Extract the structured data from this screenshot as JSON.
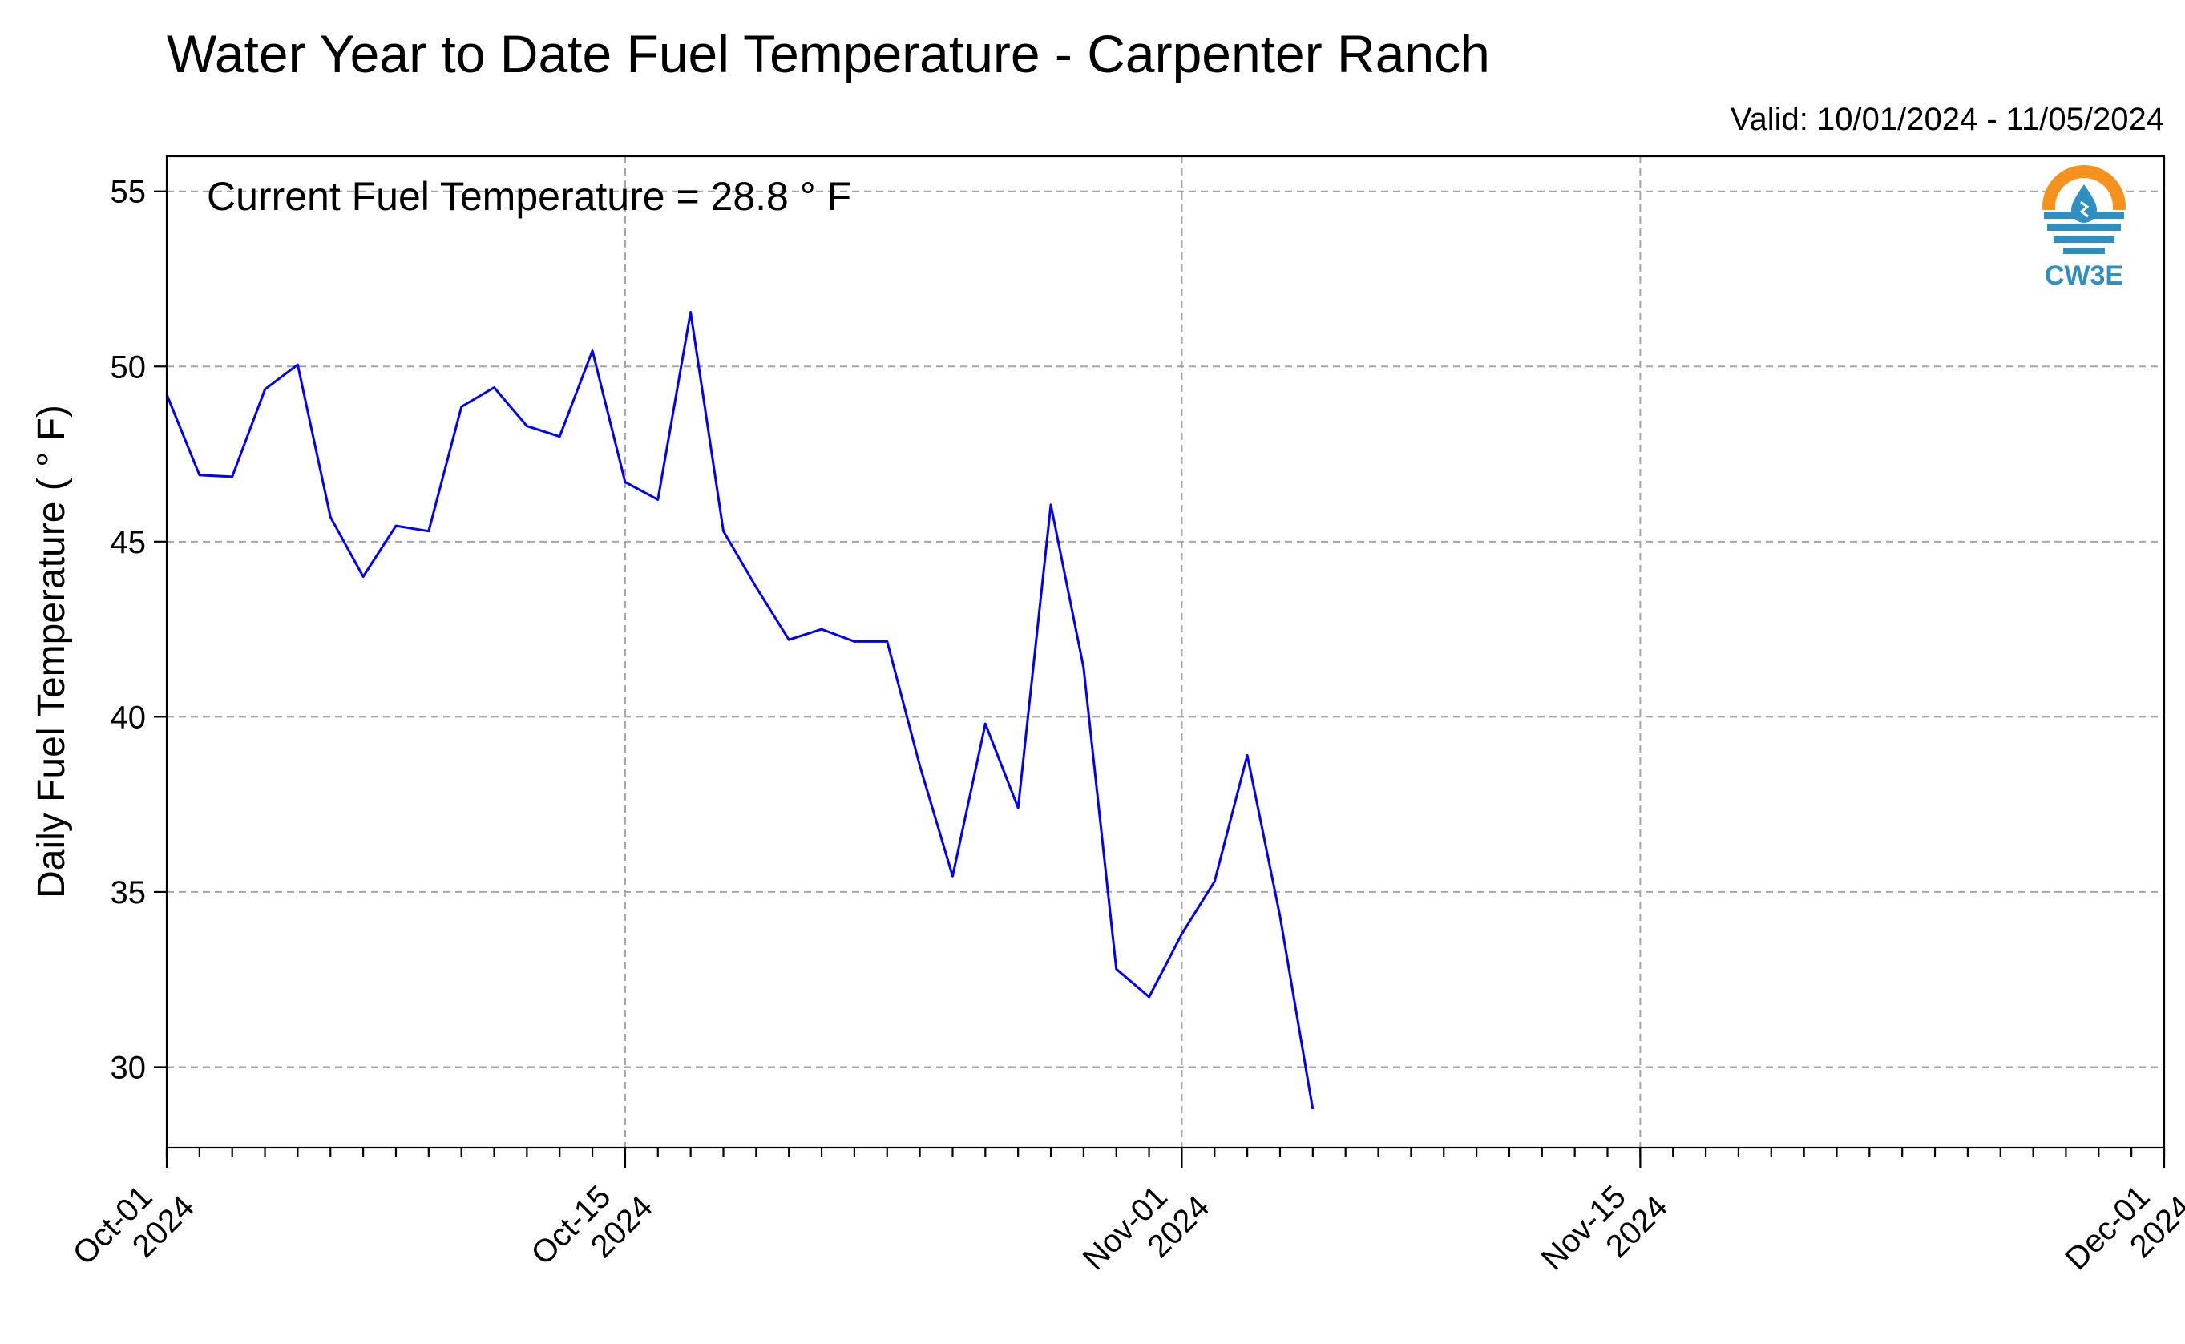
{
  "chart_data": {
    "type": "line",
    "title": "Water Year to Date Fuel Temperature - Carpenter Ranch",
    "valid_text": "Valid: 10/01/2024 - 11/05/2024",
    "annotation": "Current Fuel Temperature = 28.8 ° F",
    "ylabel": "Daily Fuel Temperature ( ° F)",
    "xlabel": "",
    "x_range": [
      "2024-10-01",
      "2024-12-01"
    ],
    "ylim": [
      27.7,
      56.0
    ],
    "yticks": [
      30,
      35,
      40,
      45,
      50,
      55
    ],
    "xticks": [
      {
        "date": "2024-10-01",
        "label": [
          "Oct-01",
          "2024"
        ]
      },
      {
        "date": "2024-10-15",
        "label": [
          "Oct-15",
          "2024"
        ]
      },
      {
        "date": "2024-11-01",
        "label": [
          "Nov-01",
          "2024"
        ]
      },
      {
        "date": "2024-11-15",
        "label": [
          "Nov-15",
          "2024"
        ]
      },
      {
        "date": "2024-12-01",
        "label": [
          "Dec-01",
          "2024"
        ]
      }
    ],
    "grid": true,
    "series": [
      {
        "color": "#0000ff",
        "x": [
          "2024-10-01",
          "2024-10-02",
          "2024-10-03",
          "2024-10-04",
          "2024-10-05",
          "2024-10-06",
          "2024-10-07",
          "2024-10-08",
          "2024-10-09",
          "2024-10-10",
          "2024-10-11",
          "2024-10-12",
          "2024-10-13",
          "2024-10-14",
          "2024-10-15",
          "2024-10-16",
          "2024-10-17",
          "2024-10-18",
          "2024-10-19",
          "2024-10-20",
          "2024-10-21",
          "2024-10-22",
          "2024-10-23",
          "2024-10-24",
          "2024-10-25",
          "2024-10-26",
          "2024-10-27",
          "2024-10-28",
          "2024-10-29",
          "2024-10-30",
          "2024-10-31",
          "2024-11-01",
          "2024-11-02",
          "2024-11-03",
          "2024-11-04",
          "2024-11-05"
        ],
        "values": [
          49.2,
          46.9,
          46.85,
          49.35,
          50.05,
          45.7,
          44.0,
          45.45,
          45.3,
          48.85,
          49.4,
          48.3,
          48.0,
          50.45,
          46.7,
          46.2,
          51.55,
          45.3,
          43.7,
          42.2,
          42.5,
          42.15,
          42.15,
          38.6,
          35.45,
          39.8,
          37.4,
          46.05,
          41.4,
          32.8,
          32.0,
          33.8,
          35.3,
          38.9,
          34.3,
          28.8
        ]
      }
    ]
  },
  "logo": {
    "text": "CW3E",
    "icon": "water-drop-logo-icon",
    "colors": {
      "sun": "#f5921e",
      "water": "#2e8fc0"
    }
  }
}
